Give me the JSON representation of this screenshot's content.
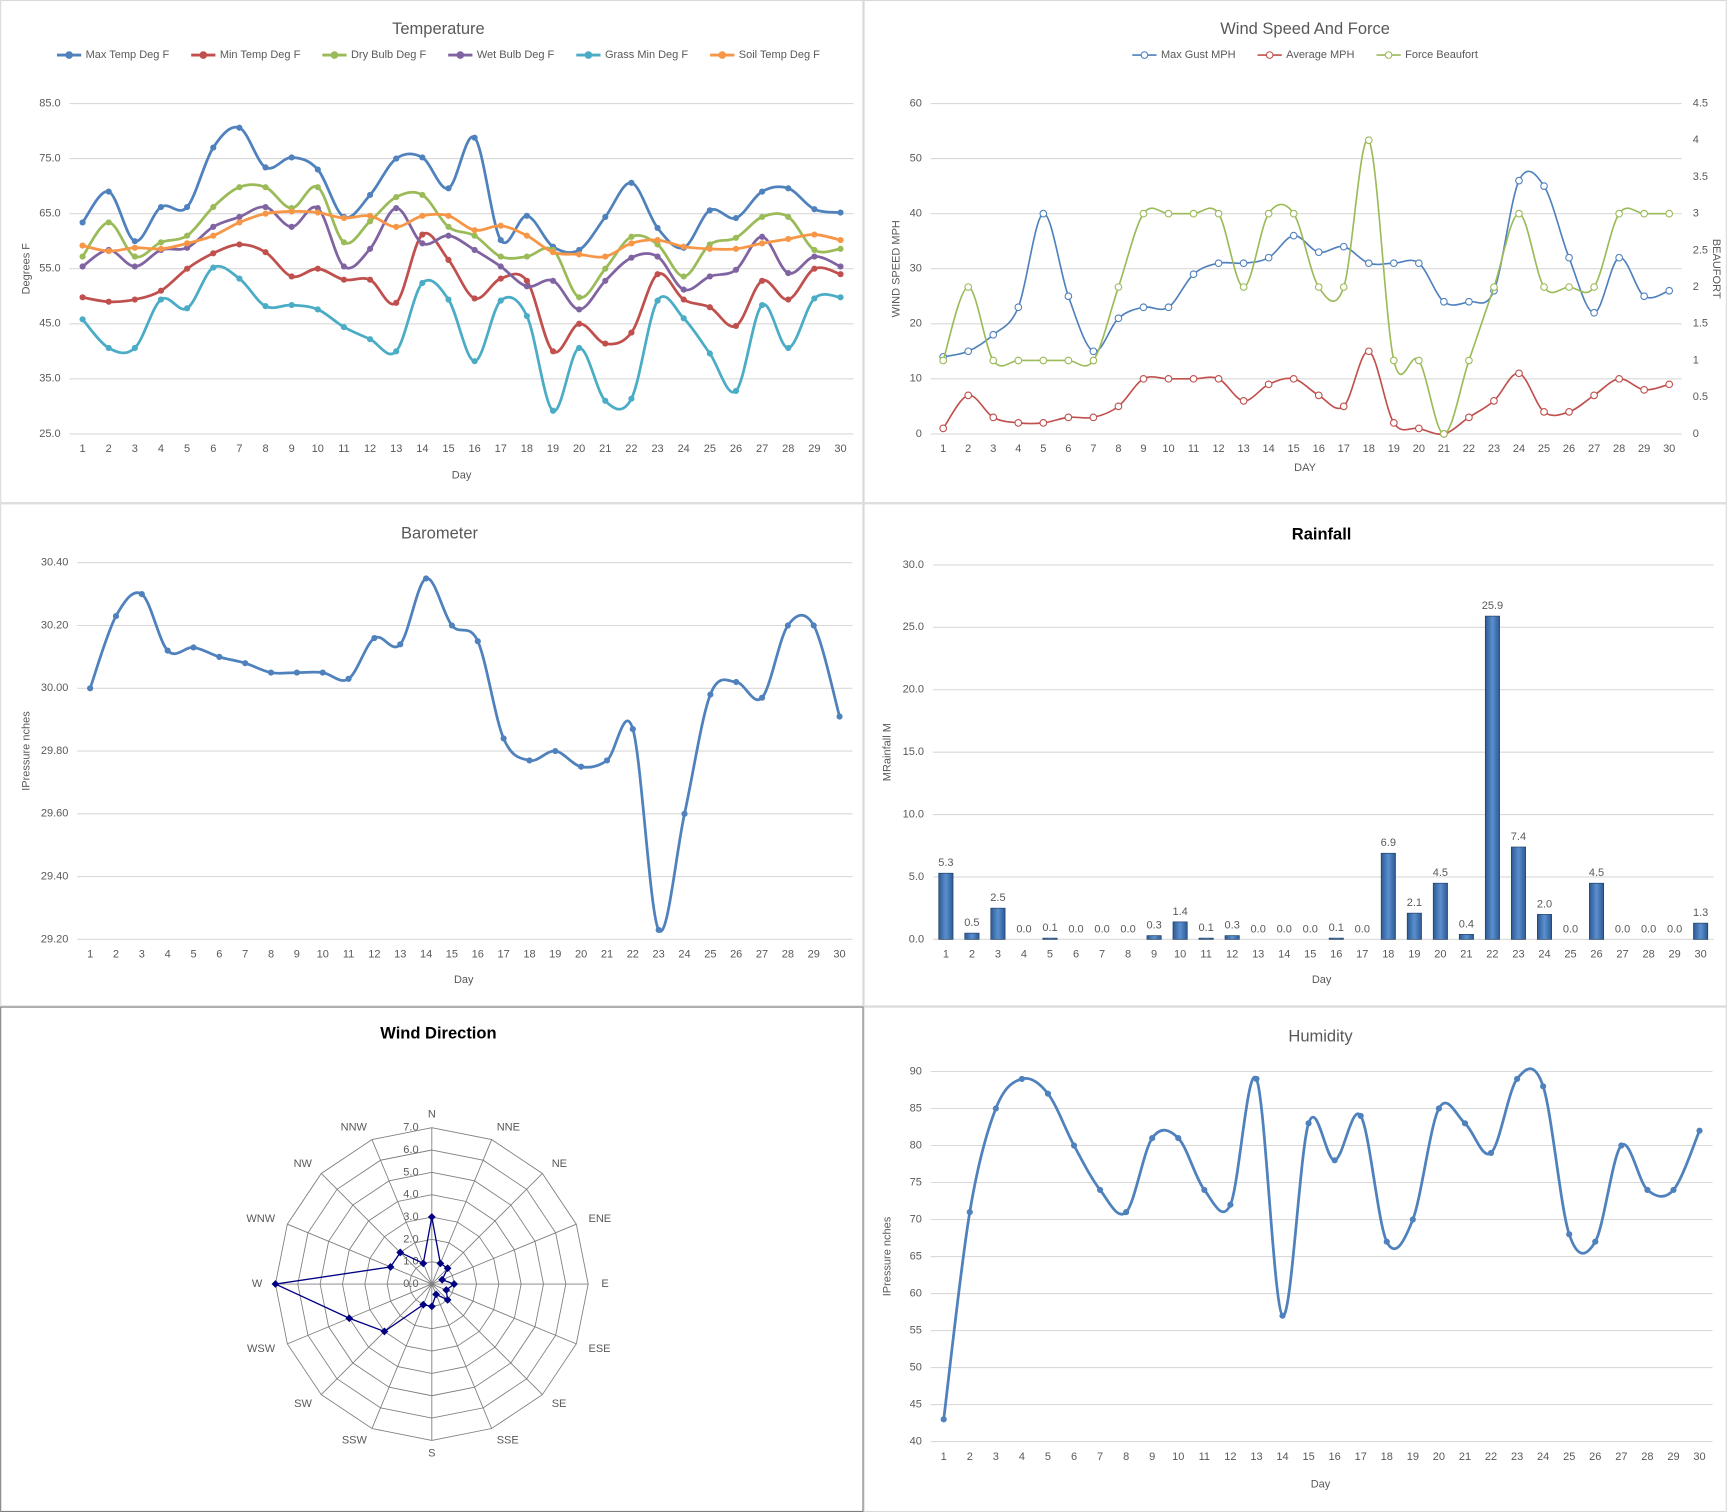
{
  "chart_data": [
    {
      "type": "line",
      "title": "Temperature",
      "x_label": "Day",
      "y_label": "Degrees F",
      "categories": [
        "1",
        "2",
        "3",
        "4",
        "5",
        "6",
        "7",
        "8",
        "9",
        "10",
        "11",
        "12",
        "13",
        "14",
        "15",
        "16",
        "17",
        "18",
        "19",
        "20",
        "21",
        "22",
        "23",
        "24",
        "25",
        "26",
        "27",
        "28",
        "29",
        "30"
      ],
      "ylim": [
        25,
        85
      ],
      "yticks": [
        {
          "value": 25,
          "label": "25.0"
        },
        {
          "value": 35,
          "label": "35.0"
        },
        {
          "value": 45,
          "label": "45.0"
        },
        {
          "value": 55,
          "label": "55.0"
        },
        {
          "value": 65,
          "label": "65.0"
        },
        {
          "value": 75,
          "label": "75.0"
        },
        {
          "value": 85,
          "label": "85.0"
        }
      ],
      "grid": true,
      "legend": "top",
      "markers": "filled",
      "series": [
        {
          "name": "Max Temp Deg F",
          "color": "#4f81bd",
          "values": [
            63.4,
            69,
            60,
            66.2,
            66.2,
            77,
            80.6,
            73.4,
            75.2,
            73,
            64.4,
            68.4,
            75,
            75.2,
            69.6,
            78.8,
            60.2,
            64.6,
            59,
            58.4,
            64.4,
            70.6,
            62.4,
            58.8,
            65.6,
            64.2,
            69,
            69.6,
            65.8,
            65.2
          ]
        },
        {
          "name": "Min Temp Deg F",
          "color": "#c0504d",
          "values": [
            49.8,
            49,
            49.4,
            51,
            55,
            57.8,
            59.4,
            58,
            53.6,
            55,
            53,
            53,
            48.8,
            61.2,
            56.6,
            49.6,
            53.2,
            52.8,
            40,
            45,
            41.4,
            43.4,
            54,
            49.4,
            48,
            44.6,
            52.8,
            49.4,
            55,
            54
          ]
        },
        {
          "name": "Dry Bulb Deg F",
          "color": "#9bbb59",
          "values": [
            57.2,
            63.4,
            57.2,
            59.8,
            61,
            66.2,
            69.8,
            69.8,
            66,
            69.8,
            59.8,
            63.6,
            68,
            68.4,
            62.6,
            61,
            57.2,
            57.2,
            58.4,
            49.8,
            55,
            60.8,
            59.4,
            53.6,
            59.4,
            60.6,
            64.4,
            64.4,
            58.4,
            58.6
          ]
        },
        {
          "name": "Wet Bulb Deg F",
          "color": "#8064a2",
          "values": [
            55.4,
            58.4,
            55.4,
            58.4,
            58.8,
            62.6,
            64.4,
            66.2,
            62.6,
            66,
            55.4,
            58.6,
            66,
            59.6,
            61,
            58.4,
            55.4,
            51.8,
            52.8,
            47.6,
            52.8,
            57,
            57.2,
            51.2,
            53.6,
            54.8,
            60.8,
            54.2,
            57.2,
            55.4
          ]
        },
        {
          "name": "Grass Min Deg F",
          "color": "#4bacc6",
          "values": [
            45.8,
            40.6,
            40.6,
            49.4,
            47.8,
            55.2,
            53.2,
            48.2,
            48.4,
            47.6,
            44.4,
            42.2,
            40,
            52.4,
            49.4,
            38.2,
            49.2,
            46.4,
            29.2,
            40.6,
            31,
            31.4,
            49.2,
            46,
            39.6,
            32.8,
            48.4,
            40.6,
            49.6,
            49.8
          ]
        },
        {
          "name": "Soil Temp Deg F",
          "color": "#f79646",
          "values": [
            59.2,
            58.2,
            58.8,
            58.6,
            59.6,
            61,
            63.4,
            65,
            65.4,
            65.2,
            64.2,
            64.6,
            62.6,
            64.6,
            64.6,
            62,
            62.8,
            61,
            58,
            57.6,
            57.2,
            59.6,
            60.2,
            59,
            58.6,
            58.6,
            59.6,
            60.4,
            61.2,
            60.2
          ]
        }
      ]
    },
    {
      "type": "line",
      "title": "Wind Speed And Force",
      "x_label": "DAY",
      "y_label": "WIND SPEED MPH",
      "y2_label": "BEAUFORT",
      "categories": [
        "1",
        "2",
        "3",
        "4",
        "5",
        "6",
        "7",
        "8",
        "9",
        "10",
        "11",
        "12",
        "13",
        "14",
        "15",
        "16",
        "17",
        "18",
        "19",
        "20",
        "21",
        "22",
        "23",
        "24",
        "25",
        "26",
        "27",
        "28",
        "29",
        "30"
      ],
      "ylim": [
        0,
        60
      ],
      "yticks": [
        0,
        10,
        20,
        30,
        40,
        50,
        60
      ],
      "y2lim": [
        0,
        4.5
      ],
      "y2ticks": [
        0,
        0.5,
        1,
        1.5,
        2,
        2.5,
        3,
        3.5,
        4,
        4.5
      ],
      "grid": true,
      "legend": "top",
      "markers": "hollow",
      "series": [
        {
          "name": "Max Gust MPH",
          "color": "#4f81bd",
          "values": [
            14,
            15,
            18,
            23,
            40,
            25,
            15,
            21,
            23,
            23,
            29,
            31,
            31,
            32,
            36,
            33,
            34,
            31,
            31,
            31,
            24,
            24,
            26,
            46,
            45,
            32,
            22,
            32,
            25,
            26
          ]
        },
        {
          "name": "Average MPH",
          "color": "#c0504d",
          "values": [
            1,
            7,
            3,
            2,
            2,
            3,
            3,
            5,
            10,
            10,
            10,
            10,
            6,
            9,
            10,
            7,
            5,
            15,
            2,
            1,
            0,
            3,
            6,
            11,
            4,
            4,
            7,
            10,
            8,
            9
          ]
        },
        {
          "name": "Force Beaufort",
          "color": "#9bbb59",
          "axis": "y2",
          "values": [
            1,
            2,
            1,
            1,
            1,
            1,
            1,
            2,
            3,
            3,
            3,
            3,
            2,
            3,
            3,
            2,
            2,
            4,
            1,
            1,
            0,
            1,
            2,
            3,
            2,
            2,
            2,
            3,
            3,
            3
          ]
        }
      ]
    },
    {
      "type": "line",
      "title": "Barometer",
      "x_label": "Day",
      "y_label": "IPressure nches",
      "categories": [
        "1",
        "2",
        "3",
        "4",
        "5",
        "6",
        "7",
        "8",
        "9",
        "10",
        "11",
        "12",
        "13",
        "14",
        "15",
        "16",
        "17",
        "18",
        "19",
        "20",
        "21",
        "22",
        "23",
        "24",
        "25",
        "26",
        "27",
        "28",
        "29",
        "30"
      ],
      "ylim": [
        29.2,
        30.4
      ],
      "yticks": [
        {
          "value": 29.2,
          "label": "29.20"
        },
        {
          "value": 29.4,
          "label": "29.40"
        },
        {
          "value": 29.6,
          "label": "29.60"
        },
        {
          "value": 29.8,
          "label": "29.80"
        },
        {
          "value": 30,
          "label": "30.00"
        },
        {
          "value": 30.2,
          "label": "30.20"
        },
        {
          "value": 30.4,
          "label": "30.40"
        }
      ],
      "grid": true,
      "markers": "filled",
      "color": "#4f81bd",
      "values": [
        30,
        30.23,
        30.3,
        30.12,
        30.13,
        30.1,
        30.08,
        30.05,
        30.05,
        30.05,
        30.03,
        30.16,
        30.14,
        30.35,
        30.2,
        30.15,
        29.84,
        29.77,
        29.8,
        29.75,
        29.77,
        29.87,
        29.23,
        29.6,
        29.98,
        30.02,
        29.97,
        30.2,
        30.2,
        29.91
      ]
    },
    {
      "type": "bar",
      "title": "Rainfall",
      "x_label": "Day",
      "y_label": "MRainfall M",
      "categories": [
        "1",
        "2",
        "3",
        "4",
        "5",
        "6",
        "7",
        "8",
        "9",
        "10",
        "11",
        "12",
        "13",
        "14",
        "15",
        "16",
        "17",
        "18",
        "19",
        "20",
        "21",
        "22",
        "23",
        "24",
        "25",
        "26",
        "27",
        "28",
        "29",
        "30"
      ],
      "ylim": [
        0,
        30
      ],
      "yticks": [
        {
          "value": 0,
          "label": "0.0"
        },
        {
          "value": 5,
          "label": "5.0"
        },
        {
          "value": 10,
          "label": "10.0"
        },
        {
          "value": 15,
          "label": "15.0"
        },
        {
          "value": 20,
          "label": "20.0"
        },
        {
          "value": 25,
          "label": "25.0"
        },
        {
          "value": 30,
          "label": "30.0"
        }
      ],
      "grid": true,
      "color": "#4f81bd",
      "values": [
        5.3,
        0.5,
        2.5,
        0,
        0.1,
        0,
        0,
        0,
        0.3,
        1.4,
        0.1,
        0.3,
        0,
        0,
        0,
        0.1,
        0,
        6.9,
        2.1,
        4.5,
        0.4,
        25.9,
        7.4,
        2,
        0,
        4.5,
        0,
        0,
        0,
        1.3
      ],
      "value_labels": [
        "5.3",
        "0.5",
        "2.5",
        "0.0",
        "0.1",
        "0.0",
        "0.0",
        "0.0",
        "0.3",
        "1.4",
        "0.1",
        "0.3",
        "0.0",
        "0.0",
        "0.0",
        "0.1",
        "0.0",
        "6.9",
        "2.1",
        "4.5",
        "0.4",
        "25.9",
        "7.4",
        "2.0",
        "0.0",
        "4.5",
        "0.0",
        "0.0",
        "0.0",
        "1.3"
      ]
    },
    {
      "type": "radar",
      "title": "Wind Direction",
      "categories": [
        "N",
        "NNE",
        "NE",
        "ENE",
        "E",
        "ESE",
        "SE",
        "SSE",
        "S",
        "SSW",
        "SW",
        "WSW",
        "W",
        "WNW",
        "NW",
        "NNW"
      ],
      "rlim": [
        0,
        7
      ],
      "rticks": [
        {
          "value": 0,
          "label": "0.0"
        },
        {
          "value": 1,
          "label": "1.0"
        },
        {
          "value": 2,
          "label": "2.0"
        },
        {
          "value": 3,
          "label": "3.0"
        },
        {
          "value": 4,
          "label": "4.0"
        },
        {
          "value": 5,
          "label": "5.0"
        },
        {
          "value": 6,
          "label": "6.0"
        },
        {
          "value": 7,
          "label": "7.0"
        }
      ],
      "color": "#000080",
      "values": [
        3,
        1,
        1,
        0.5,
        1,
        0.7,
        1,
        0.5,
        1,
        1,
        3,
        4,
        7,
        2,
        2,
        1
      ]
    },
    {
      "type": "line",
      "title": "Humidity",
      "x_label": "Day",
      "y_label": "IPressure nches",
      "categories": [
        "1",
        "2",
        "3",
        "4",
        "5",
        "6",
        "7",
        "8",
        "9",
        "10",
        "11",
        "12",
        "13",
        "14",
        "15",
        "16",
        "17",
        "18",
        "19",
        "20",
        "21",
        "22",
        "23",
        "24",
        "25",
        "26",
        "27",
        "28",
        "29",
        "30"
      ],
      "ylim": [
        40,
        90
      ],
      "yticks": [
        40,
        45,
        50,
        55,
        60,
        65,
        70,
        75,
        80,
        85,
        90
      ],
      "grid": true,
      "markers": "filled",
      "color": "#4f81bd",
      "values": [
        43,
        71,
        85,
        89,
        87,
        80,
        74,
        71,
        81,
        81,
        74,
        72,
        89,
        57,
        83,
        78,
        84,
        67,
        70,
        85,
        83,
        79,
        89,
        88,
        68,
        67,
        80,
        74,
        74,
        82
      ]
    }
  ]
}
